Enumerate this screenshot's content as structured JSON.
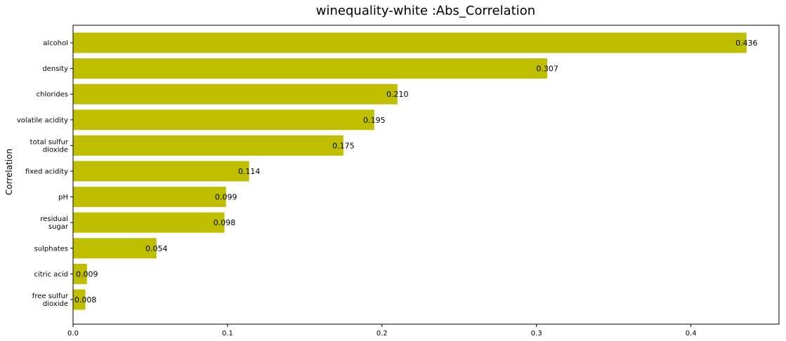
{
  "chart_data": {
    "type": "bar",
    "orientation": "horizontal",
    "title": "winequality-white :Abs_Correlation",
    "xlabel": "",
    "ylabel": "Correlation",
    "xlim": [
      0.0,
      0.457
    ],
    "xticks": [
      "0.0",
      "0.1",
      "0.2",
      "0.3",
      "0.4"
    ],
    "bar_color": "#bfbf00",
    "grid": false,
    "categories": [
      [
        "alcohol"
      ],
      [
        "density"
      ],
      [
        "chlorides"
      ],
      [
        "volatile acidity"
      ],
      [
        "total sulfur",
        "dioxide"
      ],
      [
        "fixed acidity"
      ],
      [
        "pH"
      ],
      [
        "residual",
        "sugar"
      ],
      [
        "sulphates"
      ],
      [
        "citric acid"
      ],
      [
        "free sulfur",
        "dioxide"
      ]
    ],
    "values": [
      0.436,
      0.307,
      0.21,
      0.195,
      0.175,
      0.114,
      0.099,
      0.098,
      0.054,
      0.009,
      0.008
    ],
    "value_labels": [
      "0.436",
      "0.307",
      "0.210",
      "0.195",
      "0.175",
      "0.114",
      "0.099",
      "0.098",
      "0.054",
      "0.009",
      "0.008"
    ]
  }
}
